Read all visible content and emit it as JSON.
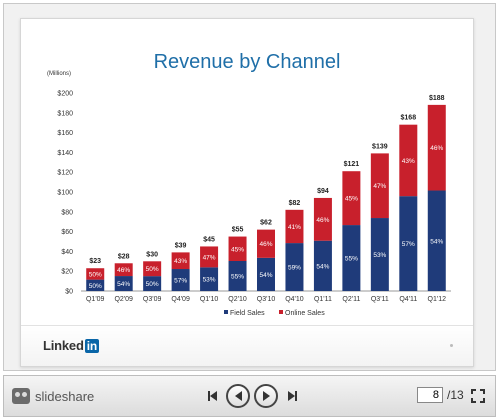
{
  "slide": {
    "title": "Revenue by Channel",
    "brand_word": "Linked",
    "brand_in": "in"
  },
  "chart_data": {
    "type": "bar",
    "stacked": true,
    "title": "Revenue by Channel",
    "ylabel": "(Millions)",
    "ylim": [
      0,
      200
    ],
    "yticks": [
      "$0",
      "$20",
      "$40",
      "$60",
      "$80",
      "$100",
      "$120",
      "$140",
      "$160",
      "$180",
      "$200"
    ],
    "categories": [
      "Q1'09",
      "Q2'09",
      "Q3'09",
      "Q4'09",
      "Q1'10",
      "Q2'10",
      "Q3'10",
      "Q4'10",
      "Q1'11",
      "Q2'11",
      "Q3'11",
      "Q4'11",
      "Q1'12"
    ],
    "totals": [
      23,
      28,
      30,
      39,
      45,
      55,
      62,
      82,
      94,
      121,
      139,
      168,
      188
    ],
    "total_labels": [
      "$23",
      "$28",
      "$30",
      "$39",
      "$45",
      "$55",
      "$62",
      "$82",
      "$94",
      "$121",
      "$139",
      "$168",
      "$188"
    ],
    "series": [
      {
        "name": "Field Sales",
        "color": "#1f3b7a",
        "percent_labels": [
          "50%",
          "54%",
          "50%",
          "57%",
          "53%",
          "55%",
          "54%",
          "59%",
          "54%",
          "55%",
          "53%",
          "57%",
          "54%"
        ],
        "values": [
          11.5,
          15.1,
          15,
          22.2,
          23.9,
          30.3,
          33.5,
          48.4,
          50.8,
          66.6,
          73.7,
          95.8,
          101.5
        ]
      },
      {
        "name": "Online Sales",
        "color": "#c8202c",
        "percent_labels": [
          "50%",
          "46%",
          "50%",
          "43%",
          "47%",
          "45%",
          "46%",
          "41%",
          "46%",
          "45%",
          "47%",
          "43%",
          "46%"
        ],
        "values": [
          11.5,
          12.9,
          15,
          16.8,
          21.1,
          24.7,
          28.5,
          33.6,
          43.2,
          54.4,
          65.3,
          72.2,
          86.5
        ]
      }
    ],
    "legend_position": "bottom",
    "grid": false
  },
  "viewer": {
    "logo_text": "slideshare",
    "current_page": "8",
    "total_pages": "/13",
    "colors": {
      "nav_border": "#444444"
    }
  }
}
